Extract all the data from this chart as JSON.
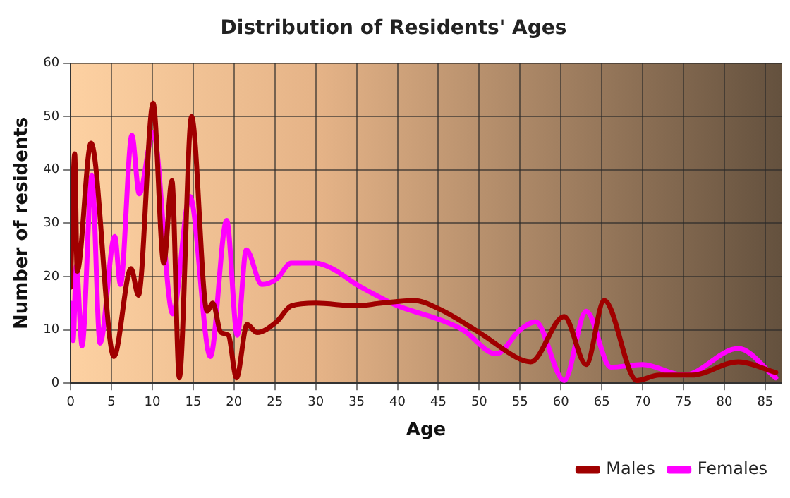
{
  "chart_data": {
    "type": "line",
    "title": "Distribution of Residents' Ages",
    "xlabel": "Age",
    "ylabel": "Number of residents",
    "series": [
      {
        "name": "Males",
        "color": "#a00000",
        "x": [
          0,
          0.5,
          0.8,
          2.5,
          5.3,
          7.4,
          8.3,
          10.1,
          11.4,
          12.4,
          13.3,
          14.8,
          16.7,
          17.4,
          18.4,
          19.3,
          20.3,
          21.6,
          22.8,
          25.2,
          27,
          30,
          35,
          38,
          42,
          45,
          50,
          55,
          56.3,
          60.4,
          63.1,
          65.3,
          69.3,
          72,
          76,
          81.7,
          86.3
        ],
        "values": [
          18,
          43,
          21,
          45,
          5,
          21.5,
          16.5,
          52.5,
          22.5,
          38,
          1,
          50,
          13.5,
          15,
          9.5,
          9,
          1,
          11,
          9.5,
          11.5,
          14.5,
          15,
          14.5,
          15,
          15.5,
          14,
          9.5,
          4.5,
          4,
          12.5,
          3.5,
          15.5,
          0.5,
          1.5,
          1.5,
          4,
          2
        ]
      },
      {
        "name": "Females",
        "color": "#ff00ff",
        "x": [
          0,
          0.3,
          0.7,
          1.4,
          2.6,
          3.6,
          5.4,
          6.1,
          7.5,
          8.4,
          10.1,
          12.5,
          14.6,
          17.1,
          19.1,
          20.4,
          21.5,
          23.4,
          25.2,
          27,
          30,
          32,
          35,
          38,
          40,
          45,
          48,
          52.1,
          55,
          56.9,
          60.4,
          63.1,
          66.1,
          70,
          75,
          81.7,
          86.3
        ],
        "values": [
          15,
          8,
          22,
          7,
          39,
          7.5,
          27.5,
          18.5,
          46.5,
          35.5,
          47,
          13,
          35,
          5,
          30.5,
          9,
          25,
          18.5,
          19.5,
          22.5,
          22.5,
          21.5,
          18.5,
          16,
          14.5,
          12,
          10,
          5.5,
          10,
          11.5,
          0.5,
          13.5,
          3,
          3.5,
          1.5,
          6.5,
          1
        ]
      }
    ],
    "xlim": [
      0,
      87
    ],
    "xticks": [
      0,
      5,
      10,
      15,
      20,
      25,
      30,
      35,
      40,
      45,
      50,
      55,
      60,
      65,
      70,
      75,
      80,
      85
    ],
    "ylim": [
      0,
      60
    ],
    "yticks": [
      0,
      10,
      20,
      30,
      40,
      50,
      60
    ],
    "grid": true,
    "legend": "bottom right",
    "marker": "none",
    "line_style": "solid"
  }
}
